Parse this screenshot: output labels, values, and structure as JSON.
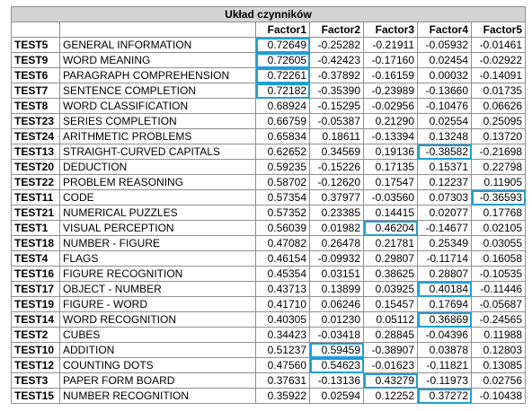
{
  "title": "Układ czynników",
  "columns": [
    "Factor1",
    "Factor2",
    "Factor3",
    "Factor4",
    "Factor5"
  ],
  "highlight_color": "#1f9ed8",
  "rows": [
    {
      "id": "TEST5",
      "label": "GENERAL INFORMATION",
      "values": [
        "0.72649",
        "-0.25282",
        "-0.21911",
        "-0.05932",
        "-0.01461"
      ],
      "highlight": [
        0
      ]
    },
    {
      "id": "TEST9",
      "label": "WORD MEANING",
      "values": [
        "0.72605",
        "-0.42423",
        "-0.17160",
        "0.02454",
        "-0.02922"
      ],
      "highlight": [
        0
      ]
    },
    {
      "id": "TEST6",
      "label": "PARAGRAPH COMPREHENSION",
      "values": [
        "0.72261",
        "-0.37892",
        "-0.16159",
        "0.00032",
        "-0.14091"
      ],
      "highlight": [
        0
      ]
    },
    {
      "id": "TEST7",
      "label": "SENTENCE COMPLETION",
      "values": [
        "0.72182",
        "-0.35390",
        "-0.23989",
        "-0.13660",
        "0.01735"
      ],
      "highlight": [
        0
      ]
    },
    {
      "id": "TEST8",
      "label": "WORD CLASSIFICATION",
      "values": [
        "0.68924",
        "-0.15295",
        "-0.02956",
        "-0.10476",
        "0.06626"
      ],
      "highlight": []
    },
    {
      "id": "TEST23",
      "label": "SERIES COMPLETION",
      "values": [
        "0.66759",
        "-0.05387",
        "0.21290",
        "0.02554",
        "0.25095"
      ],
      "highlight": []
    },
    {
      "id": "TEST24",
      "label": "ARITHMETIC PROBLEMS",
      "values": [
        "0.65834",
        "0.18611",
        "-0.13394",
        "0.13248",
        "0.13720"
      ],
      "highlight": []
    },
    {
      "id": "TEST13",
      "label": "STRAIGHT-CURVED CAPITALS",
      "values": [
        "0.62652",
        "0.34569",
        "0.19136",
        "-0.38582",
        "-0.21698"
      ],
      "highlight": [
        3
      ]
    },
    {
      "id": "TEST20",
      "label": "DEDUCTION",
      "values": [
        "0.59235",
        "-0.15226",
        "0.17135",
        "0.15371",
        "0.22798"
      ],
      "highlight": []
    },
    {
      "id": "TEST22",
      "label": "PROBLEM REASONING",
      "values": [
        "0.58702",
        "-0.12620",
        "0.17547",
        "0.12237",
        "0.11905"
      ],
      "highlight": []
    },
    {
      "id": "TEST11",
      "label": "CODE",
      "values": [
        "0.57354",
        "0.37977",
        "-0.03560",
        "0.07303",
        "-0.36593"
      ],
      "highlight": [
        4
      ]
    },
    {
      "id": "TEST21",
      "label": "NUMERICAL PUZZLES",
      "values": [
        "0.57352",
        "0.23385",
        "0.14415",
        "0.02077",
        "0.17768"
      ],
      "highlight": []
    },
    {
      "id": "TEST1",
      "label": "VISUAL PERCEPTION",
      "values": [
        "0.56039",
        "0.01982",
        "0.46204",
        "-0.14677",
        "0.02105"
      ],
      "highlight": [
        2
      ]
    },
    {
      "id": "TEST18",
      "label": "NUMBER - FIGURE",
      "values": [
        "0.47082",
        "0.26478",
        "0.21781",
        "0.25349",
        "0.03055"
      ],
      "highlight": []
    },
    {
      "id": "TEST4",
      "label": "FLAGS",
      "values": [
        "0.46154",
        "-0.09932",
        "0.29807",
        "-0.11714",
        "0.16058"
      ],
      "highlight": []
    },
    {
      "id": "TEST16",
      "label": "FIGURE RECOGNITION",
      "values": [
        "0.45354",
        "0.03151",
        "0.38625",
        "0.28807",
        "-0.10535"
      ],
      "highlight": []
    },
    {
      "id": "TEST17",
      "label": "OBJECT - NUMBER",
      "values": [
        "0.43713",
        "0.13899",
        "0.03925",
        "0.40184",
        "-0.11446"
      ],
      "highlight": [
        3
      ]
    },
    {
      "id": "TEST19",
      "label": "FIGURE - WORD",
      "values": [
        "0.41710",
        "0.06246",
        "0.15457",
        "0.17694",
        "-0.05687"
      ],
      "highlight": []
    },
    {
      "id": "TEST14",
      "label": "WORD RECOGNITION",
      "values": [
        "0.40305",
        "0.01230",
        "0.05112",
        "0.36869",
        "-0.24565"
      ],
      "highlight": [
        3
      ]
    },
    {
      "id": "TEST2",
      "label": "CUBES",
      "values": [
        "0.34423",
        "-0.03418",
        "0.28845",
        "-0.04396",
        "0.11988"
      ],
      "highlight": []
    },
    {
      "id": "TEST10",
      "label": "ADDITION",
      "values": [
        "0.51237",
        "0.59459",
        "-0.38907",
        "0.03878",
        "0.12803"
      ],
      "highlight": [
        1
      ]
    },
    {
      "id": "TEST12",
      "label": "COUNTING DOTS",
      "values": [
        "0.47560",
        "0.54623",
        "-0.01623",
        "-0.11821",
        "0.13085"
      ],
      "highlight": [
        1
      ]
    },
    {
      "id": "TEST3",
      "label": "PAPER FORM BOARD",
      "values": [
        "0.37631",
        "-0.13136",
        "0.43279",
        "-0.11973",
        "0.02756"
      ],
      "highlight": [
        2
      ]
    },
    {
      "id": "TEST15",
      "label": "NUMBER RECOGNITION",
      "values": [
        "0.35922",
        "0.02594",
        "0.12252",
        "0.37272",
        "-0.10438"
      ],
      "highlight": [
        3
      ]
    }
  ]
}
